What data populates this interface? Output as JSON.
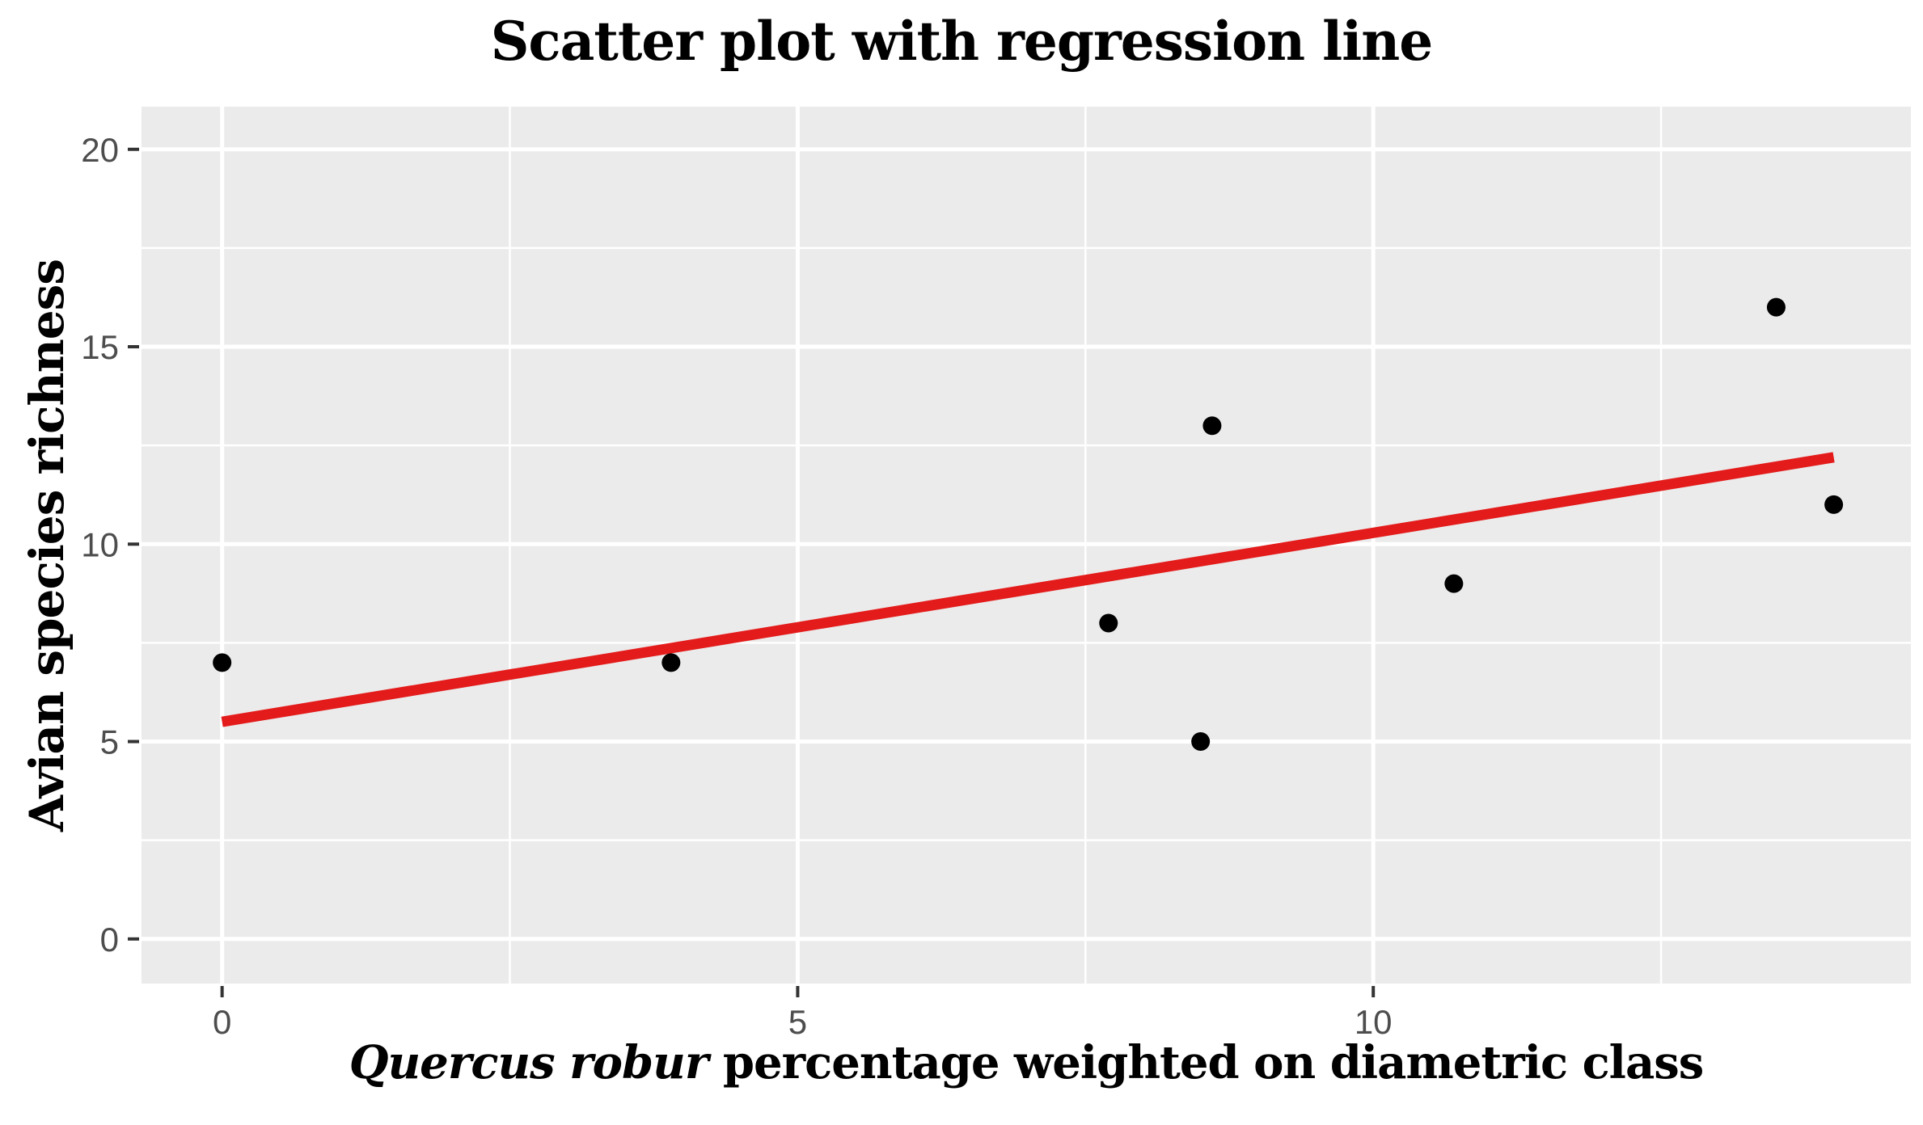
{
  "chart_data": {
    "type": "scatter",
    "title": "Scatter plot with regression line",
    "xlabel": "Quercus robur percentage weighted on diametric class",
    "xlabel_italic_part": "Quercus robur",
    "xlabel_regular_part": " percentage weighted on diametric class",
    "ylabel": "Avian species richness",
    "points": [
      {
        "x": 0,
        "y": 7
      },
      {
        "x": 3.9,
        "y": 7
      },
      {
        "x": 7.7,
        "y": 8
      },
      {
        "x": 8.5,
        "y": 5
      },
      {
        "x": 8.6,
        "y": 13
      },
      {
        "x": 10.7,
        "y": 9
      },
      {
        "x": 13.5,
        "y": 16
      },
      {
        "x": 14.0,
        "y": 11
      }
    ],
    "regression_line": {
      "x_start": 0,
      "y_start": 5.5,
      "x_end": 14.0,
      "y_end": 12.2
    },
    "x_ticks": [
      0,
      5,
      10
    ],
    "y_ticks": [
      0,
      5,
      10,
      15,
      20
    ],
    "x_minor_gridlines": [
      2.5,
      7.5,
      12.5
    ],
    "y_minor_gridlines": [
      2.5,
      7.5,
      12.5,
      17.5
    ],
    "xlim": [
      -0.7,
      14.67
    ],
    "ylim": [
      -1.13,
      21.08
    ],
    "grid": true,
    "legend_position": "none",
    "style": {
      "panel_background": "#EBEBEB",
      "gridline_color": "#FFFFFF",
      "point_color": "#000000",
      "regression_color": "#E41B1B",
      "tick_label_color": "#4D4D4D",
      "tick_mark_color": "#333333",
      "title_color": "#000000"
    }
  }
}
